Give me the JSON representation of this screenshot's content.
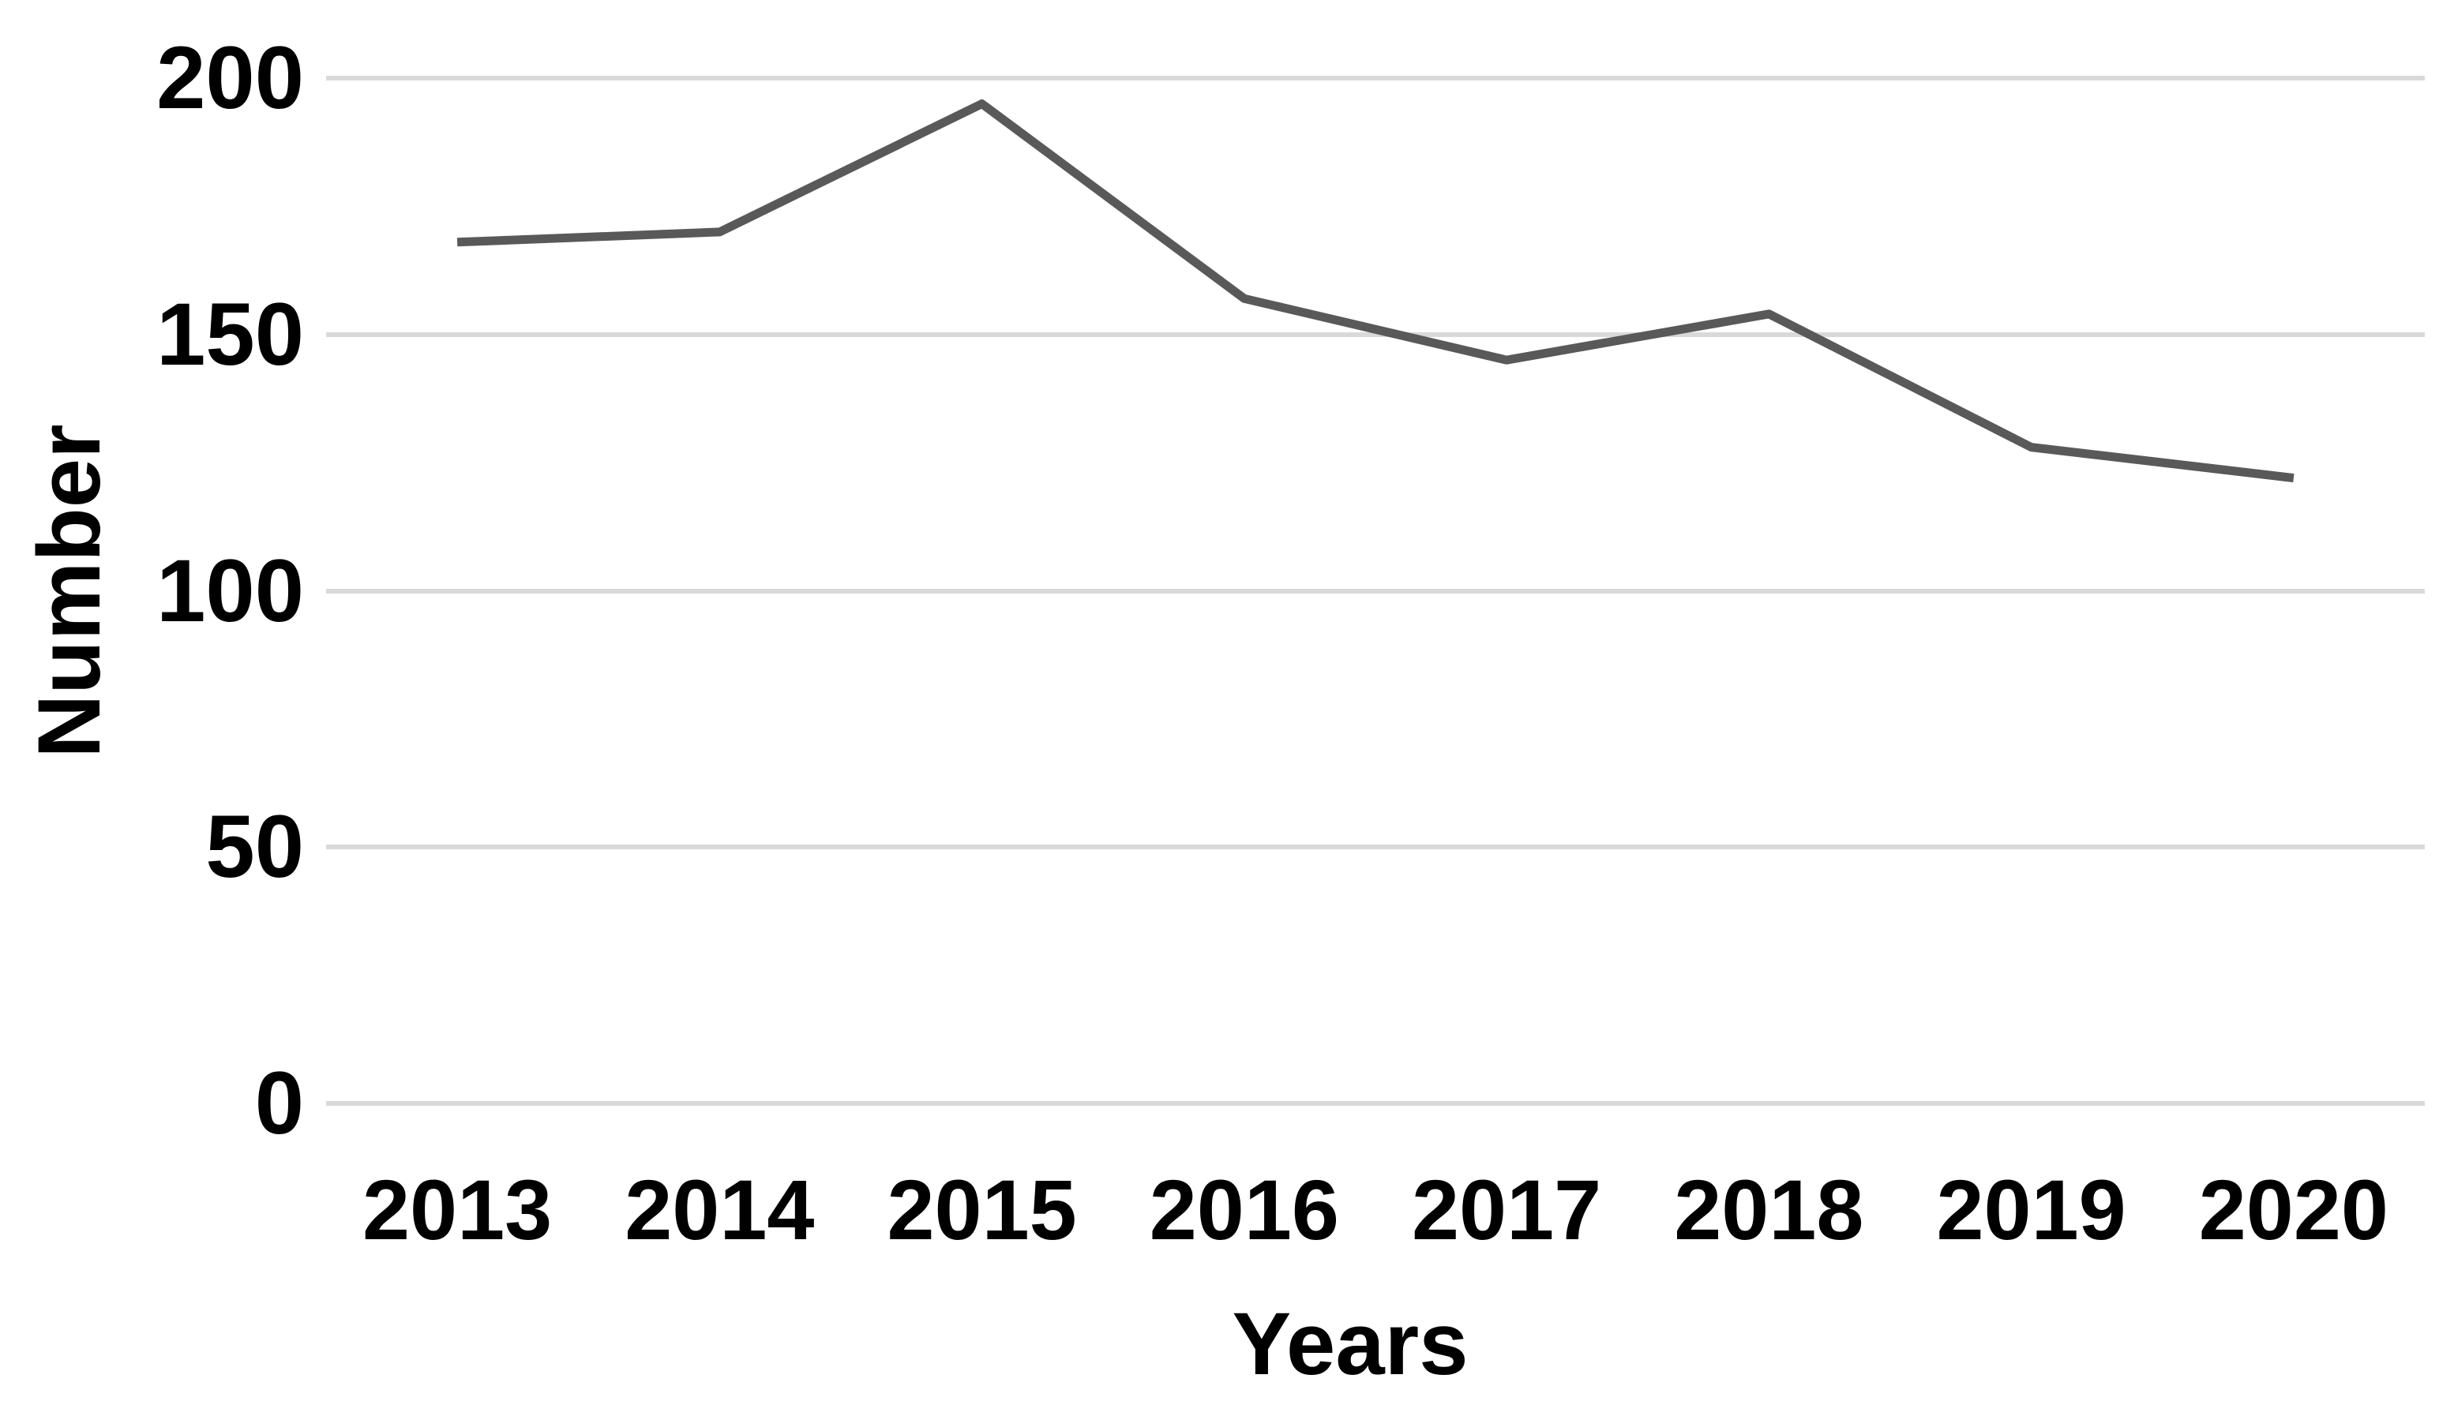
{
  "chart_data": {
    "type": "line",
    "title": "",
    "xlabel": "Years",
    "ylabel": "Number",
    "categories": [
      "2013",
      "2014",
      "2015",
      "2016",
      "2017",
      "2018",
      "2019",
      "2020"
    ],
    "series": [
      {
        "name": "Number",
        "values": [
          168,
          170,
          195,
          157,
          145,
          154,
          128,
          122
        ]
      }
    ],
    "y_ticks": [
      0,
      50,
      100,
      150,
      200
    ],
    "ylim": [
      0,
      200
    ],
    "grid": "horizontal-only",
    "legend": "none",
    "line_color": "#595959",
    "gridline_color": "#d9d9d9",
    "tick_label_color": "#000000",
    "background_color": "#ffffff"
  }
}
